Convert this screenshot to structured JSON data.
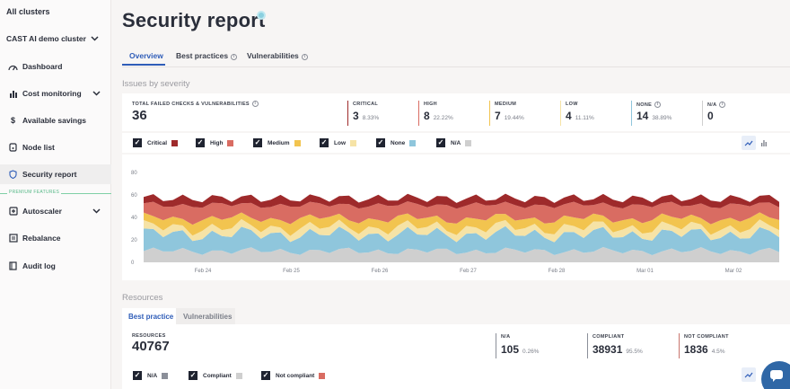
{
  "sidebar": {
    "all_clusters": "All clusters",
    "cluster": "CAST AI demo cluster",
    "items": [
      {
        "label": "Dashboard",
        "icon": "gauge-icon"
      },
      {
        "label": "Cost monitoring",
        "icon": "bar-chart-icon"
      },
      {
        "label": "Available savings",
        "icon": "dollar-icon"
      },
      {
        "label": "Node list",
        "icon": "node-icon"
      },
      {
        "label": "Security report",
        "icon": "shield-icon"
      },
      {
        "label": "Autoscaler",
        "icon": "autoscaler-icon"
      },
      {
        "label": "Rebalance",
        "icon": "rebalance-icon"
      },
      {
        "label": "Audit log",
        "icon": "book-icon"
      }
    ],
    "premium_label": "PREMIUM FEATURES"
  },
  "page": {
    "title": "Security report",
    "tabs": [
      "Overview",
      "Best practices",
      "Vulnerabilities"
    ]
  },
  "issues": {
    "section_title": "Issues by severity",
    "total_label": "TOTAL FAILED CHECKS & VULNERABILITIES",
    "total_value": "36",
    "stats": [
      {
        "label": "CRITICAL",
        "value": "3",
        "pct": "8.33%",
        "color": "#9e2a2b"
      },
      {
        "label": "HIGH",
        "value": "8",
        "pct": "22.22%",
        "color": "#d96c62"
      },
      {
        "label": "MEDIUM",
        "value": "7",
        "pct": "19.44%",
        "color": "#f2c44f"
      },
      {
        "label": "LOW",
        "value": "4",
        "pct": "11.11%",
        "color": "#f6e3a6"
      },
      {
        "label": "NONE",
        "value": "14",
        "pct": "38.89%",
        "color": "#8fc6dc"
      },
      {
        "label": "N/A",
        "value": "0",
        "pct": "",
        "color": "#cfcfcf"
      }
    ],
    "legend": [
      {
        "label": "Critical",
        "color": "#9e2a2b"
      },
      {
        "label": "High",
        "color": "#d96c62"
      },
      {
        "label": "Medium",
        "color": "#f2c44f"
      },
      {
        "label": "Low",
        "color": "#f6e3a6"
      },
      {
        "label": "None",
        "color": "#8fc6dc"
      },
      {
        "label": "N/A",
        "color": "#cfcfcf"
      }
    ]
  },
  "chart_data": {
    "type": "area",
    "stacked": true,
    "yticks": [
      "0",
      "20",
      "40",
      "60",
      "80"
    ],
    "ylim": [
      0,
      80
    ],
    "xticks": [
      "Feb 24",
      "Feb 25",
      "Feb 26",
      "Feb 27",
      "Feb 28",
      "Mar 01",
      "Mar 02"
    ],
    "series": [
      {
        "name": "N/A",
        "approx_mean": 10,
        "color": "#cfcfcf"
      },
      {
        "name": "None",
        "approx_mean": 15,
        "color": "#8fc6dc"
      },
      {
        "name": "Low",
        "approx_mean": 6,
        "color": "#f6e3a6"
      },
      {
        "name": "Medium",
        "approx_mean": 8,
        "color": "#f2c44f"
      },
      {
        "name": "High",
        "approx_mean": 12,
        "color": "#d96c62"
      },
      {
        "name": "Critical",
        "approx_mean": 6,
        "color": "#9e2a2b"
      }
    ],
    "periods": 66
  },
  "resources": {
    "section_title": "Resources",
    "tabs": [
      "Best practice",
      "Vulnerabilities"
    ],
    "total_label": "RESOURCES",
    "total_value": "40767",
    "stats": [
      {
        "label": "N/A",
        "value": "105",
        "pct": "0.26%",
        "color": "#8b8f99"
      },
      {
        "label": "COMPLIANT",
        "value": "38931",
        "pct": "95.5%",
        "color": "#8b8f99"
      },
      {
        "label": "NOT COMPLIANT",
        "value": "1836",
        "pct": "4.5%",
        "color": "#c9756d"
      }
    ],
    "legend": [
      {
        "label": "N/A",
        "color": "#8b8f99"
      },
      {
        "label": "Compliant",
        "color": "#cfcfcf"
      },
      {
        "label": "Not compliant",
        "color": "#d96c62"
      }
    ]
  }
}
